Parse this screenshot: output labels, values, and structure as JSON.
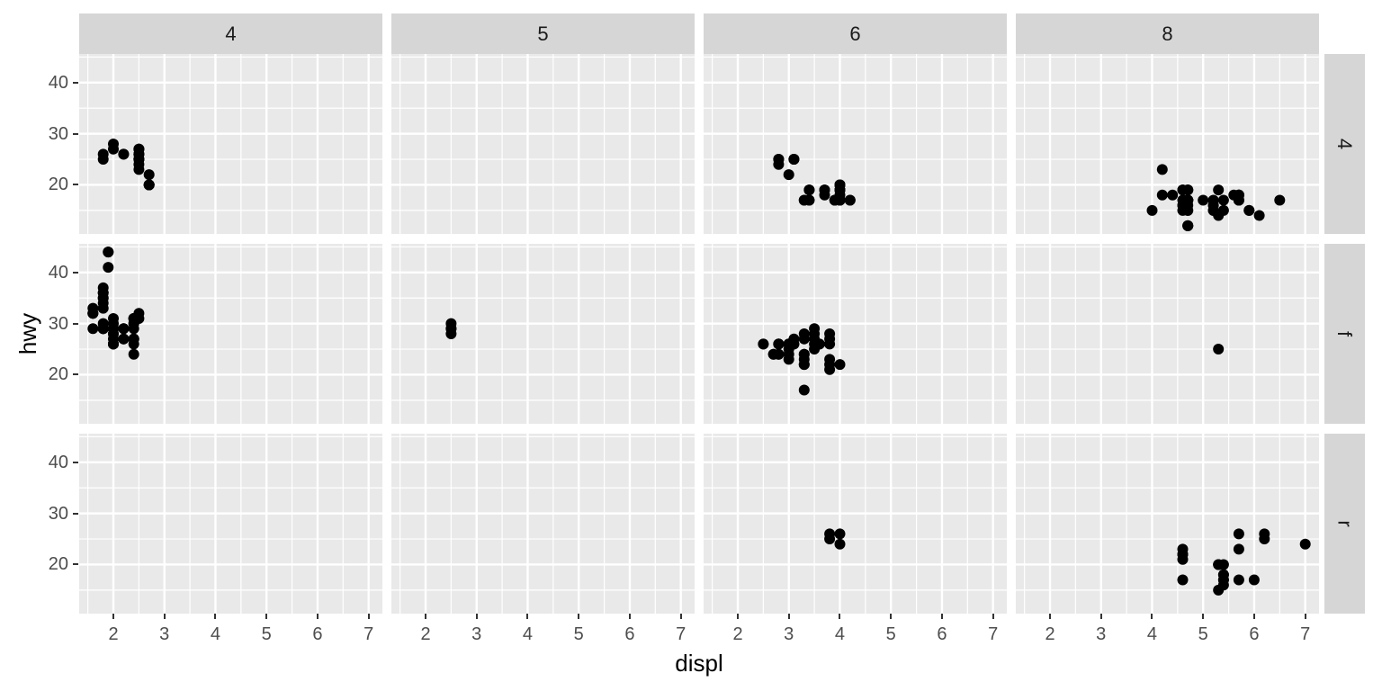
{
  "chart_data": {
    "type": "scatter",
    "title": "",
    "xlabel": "displ",
    "ylabel": "hwy",
    "legend": "none",
    "grid": true,
    "facet_col_labels": [
      "4",
      "5",
      "6",
      "8"
    ],
    "facet_row_labels": [
      "4",
      "f",
      "r"
    ],
    "x_ticks": [
      2,
      3,
      4,
      5,
      6,
      7
    ],
    "y_ticks": [
      20,
      30,
      40
    ],
    "x_minor_ticks": [
      1.5,
      2.5,
      3.5,
      4.5,
      5.5,
      6.5
    ],
    "y_minor_ticks": [
      15,
      25,
      35,
      45
    ],
    "xlim": [
      1.33,
      7.27
    ],
    "ylim": [
      10.4,
      45.6
    ],
    "colors": {
      "panel_bg": "#e9e9e9",
      "grid_line": "#ffffff",
      "strip_bg": "#d6d6d6",
      "strip_text": "#1a1a1a",
      "axis_text": "#4d4d4d",
      "axis_title": "#000000",
      "point": "#000000",
      "tick_mark": "#333333"
    },
    "panels": [
      {
        "col": "4",
        "row": "4",
        "points": [
          [
            1.8,
            26
          ],
          [
            1.8,
            25
          ],
          [
            2.0,
            28
          ],
          [
            2.0,
            27
          ],
          [
            2.2,
            26
          ],
          [
            2.2,
            26
          ],
          [
            2.5,
            26
          ],
          [
            2.5,
            26
          ],
          [
            2.5,
            25
          ],
          [
            2.5,
            27
          ],
          [
            2.5,
            25
          ],
          [
            2.5,
            27
          ],
          [
            2.5,
            25
          ],
          [
            2.5,
            24
          ],
          [
            2.5,
            27
          ],
          [
            2.5,
            25
          ],
          [
            2.5,
            26
          ],
          [
            2.5,
            23
          ],
          [
            2.7,
            20
          ],
          [
            2.7,
            20
          ],
          [
            2.7,
            22
          ],
          [
            2.7,
            20
          ],
          [
            2.7,
            20
          ]
        ]
      },
      {
        "col": "5",
        "row": "4",
        "points": []
      },
      {
        "col": "6",
        "row": "4",
        "points": [
          [
            2.8,
            25
          ],
          [
            2.8,
            25
          ],
          [
            3.1,
            25
          ],
          [
            3.1,
            25
          ],
          [
            2.8,
            24
          ],
          [
            3.1,
            25
          ],
          [
            3.7,
            19
          ],
          [
            3.7,
            18
          ],
          [
            3.9,
            17
          ],
          [
            3.9,
            17
          ],
          [
            3.9,
            17
          ],
          [
            4.0,
            17
          ],
          [
            4.0,
            19
          ],
          [
            4.0,
            17
          ],
          [
            4.0,
            19
          ],
          [
            4.2,
            17
          ],
          [
            4.2,
            17
          ],
          [
            3.0,
            22
          ],
          [
            3.7,
            19
          ],
          [
            4.0,
            20
          ],
          [
            4.0,
            17
          ],
          [
            4.0,
            19
          ],
          [
            3.3,
            17
          ],
          [
            3.3,
            17
          ],
          [
            4.0,
            20
          ],
          [
            3.4,
            19
          ],
          [
            3.4,
            17
          ],
          [
            4.0,
            20
          ],
          [
            3.4,
            17
          ],
          [
            3.4,
            19
          ],
          [
            4.0,
            20
          ],
          [
            4.0,
            18
          ]
        ]
      },
      {
        "col": "8",
        "row": "4",
        "points": [
          [
            4.2,
            23
          ],
          [
            5.3,
            19
          ],
          [
            5.3,
            14
          ],
          [
            5.7,
            17
          ],
          [
            6.5,
            17
          ],
          [
            4.7,
            19
          ],
          [
            4.7,
            19
          ],
          [
            4.7,
            12
          ],
          [
            5.2,
            17
          ],
          [
            5.2,
            15
          ],
          [
            4.7,
            17
          ],
          [
            4.7,
            12
          ],
          [
            4.7,
            17
          ],
          [
            5.2,
            16
          ],
          [
            5.7,
            18
          ],
          [
            5.9,
            15
          ],
          [
            4.7,
            16
          ],
          [
            4.7,
            12
          ],
          [
            4.7,
            17
          ],
          [
            4.7,
            17
          ],
          [
            5.2,
            15
          ],
          [
            5.2,
            16
          ],
          [
            5.7,
            17
          ],
          [
            5.9,
            15
          ],
          [
            4.6,
            19
          ],
          [
            4.6,
            16
          ],
          [
            4.6,
            16
          ],
          [
            4.6,
            17
          ],
          [
            5.4,
            15
          ],
          [
            5.4,
            17
          ],
          [
            4.7,
            17
          ],
          [
            4.7,
            12
          ],
          [
            4.7,
            19
          ],
          [
            5.7,
            18
          ],
          [
            6.1,
            14
          ],
          [
            4.0,
            15
          ],
          [
            4.2,
            18
          ],
          [
            4.4,
            18
          ],
          [
            4.6,
            15
          ],
          [
            4.6,
            19
          ],
          [
            5.0,
            17
          ],
          [
            5.6,
            18
          ],
          [
            4.7,
            17
          ],
          [
            4.7,
            15
          ],
          [
            5.7,
            18
          ],
          [
            4.7,
            15
          ],
          [
            4.7,
            17
          ],
          [
            5.7,
            17
          ]
        ]
      },
      {
        "col": "4",
        "row": "f",
        "points": [
          [
            1.8,
            29
          ],
          [
            1.8,
            29
          ],
          [
            2.0,
            31
          ],
          [
            2.0,
            30
          ],
          [
            2.4,
            27
          ],
          [
            2.4,
            30
          ],
          [
            2.4,
            24
          ],
          [
            1.6,
            33
          ],
          [
            1.6,
            32
          ],
          [
            1.6,
            32
          ],
          [
            1.6,
            29
          ],
          [
            1.6,
            32
          ],
          [
            1.8,
            34
          ],
          [
            1.8,
            36
          ],
          [
            1.8,
            36
          ],
          [
            2.0,
            29
          ],
          [
            2.4,
            26
          ],
          [
            2.4,
            27
          ],
          [
            2.4,
            30
          ],
          [
            2.4,
            31
          ],
          [
            2.0,
            26
          ],
          [
            2.0,
            29
          ],
          [
            2.0,
            28
          ],
          [
            2.0,
            27
          ],
          [
            2.4,
            29
          ],
          [
            2.4,
            27
          ],
          [
            2.5,
            31
          ],
          [
            2.5,
            32
          ],
          [
            2.2,
            29
          ],
          [
            2.2,
            27
          ],
          [
            2.4,
            31
          ],
          [
            2.4,
            31
          ],
          [
            2.2,
            27
          ],
          [
            2.2,
            29
          ],
          [
            2.4,
            31
          ],
          [
            2.4,
            31
          ],
          [
            1.8,
            30
          ],
          [
            1.8,
            33
          ],
          [
            1.8,
            35
          ],
          [
            1.8,
            37
          ],
          [
            1.8,
            35
          ],
          [
            2.0,
            29
          ],
          [
            2.0,
            26
          ],
          [
            2.0,
            29
          ],
          [
            2.0,
            29
          ],
          [
            1.9,
            44
          ],
          [
            2.0,
            29
          ],
          [
            2.0,
            26
          ],
          [
            2.0,
            29
          ],
          [
            2.0,
            29
          ],
          [
            1.9,
            44
          ],
          [
            1.9,
            41
          ],
          [
            2.0,
            26
          ],
          [
            2.0,
            29
          ],
          [
            1.8,
            29
          ],
          [
            1.8,
            29
          ],
          [
            2.0,
            28
          ],
          [
            2.0,
            29
          ]
        ]
      },
      {
        "col": "5",
        "row": "f",
        "points": [
          [
            2.5,
            28
          ],
          [
            2.5,
            29
          ],
          [
            2.5,
            29
          ],
          [
            2.5,
            30
          ]
        ]
      },
      {
        "col": "6",
        "row": "f",
        "points": [
          [
            2.8,
            26
          ],
          [
            2.8,
            26
          ],
          [
            3.1,
            27
          ],
          [
            3.1,
            26
          ],
          [
            3.5,
            29
          ],
          [
            3.6,
            26
          ],
          [
            3.0,
            24
          ],
          [
            3.3,
            22
          ],
          [
            3.3,
            22
          ],
          [
            3.3,
            24
          ],
          [
            3.3,
            24
          ],
          [
            3.3,
            17
          ],
          [
            3.8,
            22
          ],
          [
            3.8,
            21
          ],
          [
            3.8,
            23
          ],
          [
            4.0,
            22
          ],
          [
            2.5,
            26
          ],
          [
            2.5,
            26
          ],
          [
            3.3,
            28
          ],
          [
            2.7,
            24
          ],
          [
            2.7,
            24
          ],
          [
            3.5,
            27
          ],
          [
            3.5,
            26
          ],
          [
            3.0,
            26
          ],
          [
            3.0,
            25
          ],
          [
            3.5,
            25
          ],
          [
            3.1,
            26
          ],
          [
            3.8,
            26
          ],
          [
            3.8,
            27
          ],
          [
            3.8,
            28
          ],
          [
            3.0,
            26
          ],
          [
            3.0,
            26
          ],
          [
            3.5,
            28
          ],
          [
            3.0,
            26
          ],
          [
            3.0,
            26
          ],
          [
            3.3,
            27
          ],
          [
            3.0,
            23
          ],
          [
            3.3,
            23
          ],
          [
            2.8,
            24
          ],
          [
            2.8,
            24
          ],
          [
            2.8,
            26
          ],
          [
            2.8,
            26
          ],
          [
            3.6,
            26
          ]
        ]
      },
      {
        "col": "8",
        "row": "f",
        "points": [
          [
            5.3,
            25
          ]
        ]
      },
      {
        "col": "4",
        "row": "r",
        "points": []
      },
      {
        "col": "5",
        "row": "r",
        "points": []
      },
      {
        "col": "6",
        "row": "r",
        "points": [
          [
            3.8,
            26
          ],
          [
            3.8,
            25
          ],
          [
            4.0,
            26
          ],
          [
            4.0,
            24
          ]
        ]
      },
      {
        "col": "8",
        "row": "r",
        "points": [
          [
            5.3,
            20
          ],
          [
            5.3,
            15
          ],
          [
            5.3,
            20
          ],
          [
            5.7,
            17
          ],
          [
            6.0,
            17
          ],
          [
            5.7,
            26
          ],
          [
            5.7,
            23
          ],
          [
            6.2,
            26
          ],
          [
            6.2,
            25
          ],
          [
            7.0,
            24
          ],
          [
            4.6,
            17
          ],
          [
            5.4,
            17
          ],
          [
            5.4,
            18
          ],
          [
            4.6,
            21
          ],
          [
            4.6,
            22
          ],
          [
            4.6,
            23
          ],
          [
            4.6,
            22
          ],
          [
            5.4,
            20
          ],
          [
            5.4,
            17
          ],
          [
            5.4,
            16
          ],
          [
            5.4,
            18
          ]
        ]
      }
    ]
  }
}
